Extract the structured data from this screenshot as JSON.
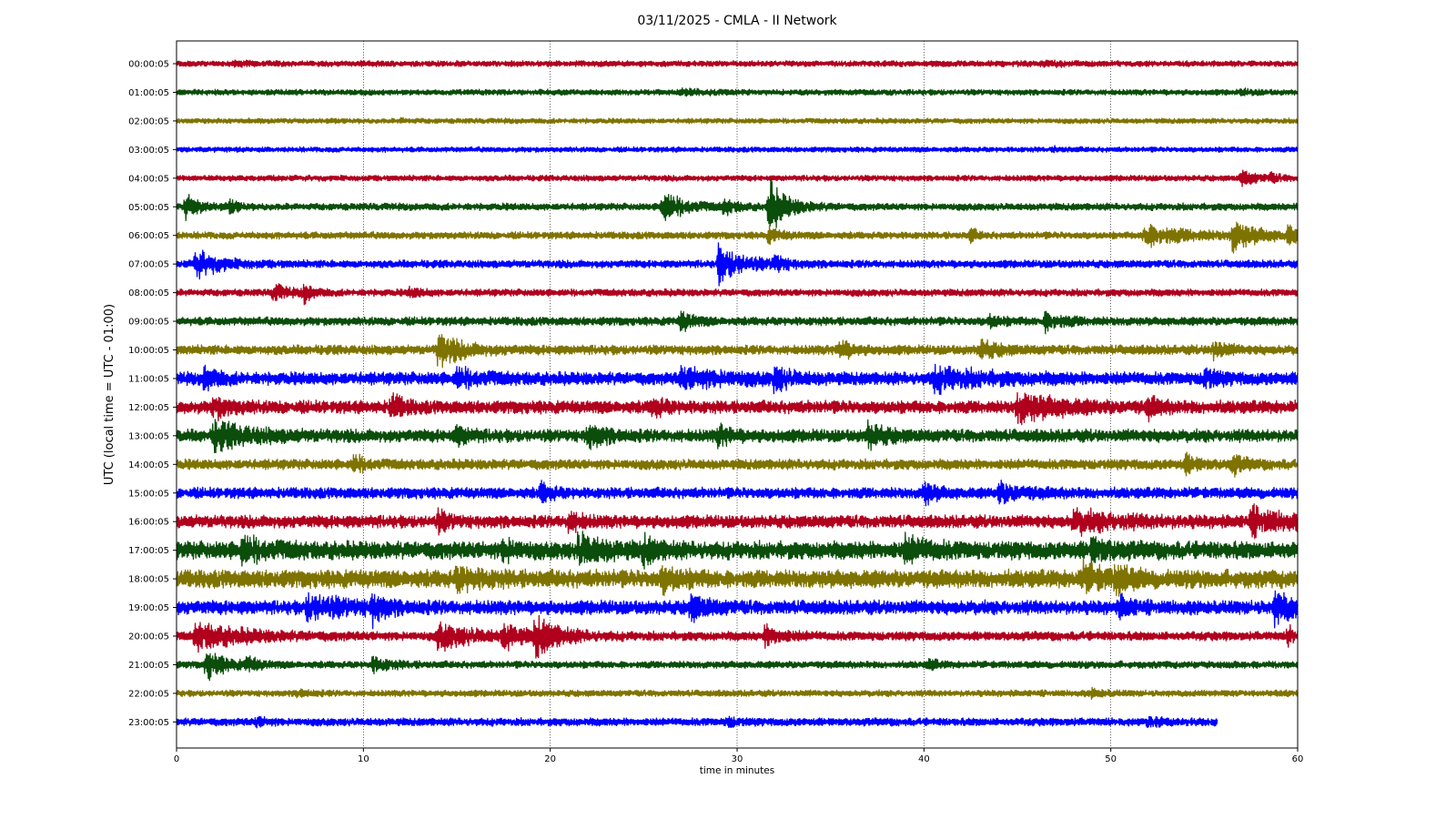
{
  "chart_data": {
    "type": "line",
    "title": "03/11/2025 - CMLA - II Network",
    "xlabel": "time in minutes",
    "ylabel": "UTC (local time = UTC - 01:00)",
    "xlim": [
      0,
      60
    ],
    "xticks": [
      "0",
      "10",
      "20",
      "30",
      "40",
      "50",
      "60"
    ],
    "grid": "vertical dotted at x ticks",
    "colors": [
      "#b0001e",
      "#0b4d0b",
      "#7f7300",
      "#0000ff"
    ],
    "rows": [
      {
        "label": "00:00:05",
        "color": "#b0001e",
        "amplitude": 0.45,
        "end_minute": 60,
        "events": [
          {
            "t": 3.0,
            "amp": 0.3,
            "dur": 1.5
          },
          {
            "t": 46.5,
            "amp": 0.3,
            "dur": 1.5
          }
        ]
      },
      {
        "label": "01:00:05",
        "color": "#0b4d0b",
        "amplitude": 0.45,
        "end_minute": 60,
        "events": [
          {
            "t": 27.0,
            "amp": 0.3,
            "dur": 2
          },
          {
            "t": 57.0,
            "amp": 0.3,
            "dur": 1
          }
        ]
      },
      {
        "label": "02:00:05",
        "color": "#7f7300",
        "amplitude": 0.4,
        "end_minute": 60,
        "events": [
          {
            "t": 12.0,
            "amp": 0.2,
            "dur": 1
          }
        ]
      },
      {
        "label": "03:00:05",
        "color": "#0000ff",
        "amplitude": 0.4,
        "end_minute": 60,
        "events": [
          {
            "t": 47.0,
            "amp": 0.2,
            "dur": 1
          }
        ]
      },
      {
        "label": "04:00:05",
        "color": "#b0001e",
        "amplitude": 0.45,
        "end_minute": 60,
        "events": [
          {
            "t": 57.0,
            "amp": 1.2,
            "dur": 1.2
          },
          {
            "t": 58.5,
            "amp": 0.6,
            "dur": 0.8
          }
        ]
      },
      {
        "label": "05:00:05",
        "color": "#0b4d0b",
        "amplitude": 0.55,
        "end_minute": 60,
        "events": [
          {
            "t": 0.5,
            "amp": 1.8,
            "dur": 1.0
          },
          {
            "t": 2.9,
            "amp": 0.9,
            "dur": 0.6
          },
          {
            "t": 26.0,
            "amp": 2.3,
            "dur": 1.8
          },
          {
            "t": 29.3,
            "amp": 1.0,
            "dur": 1.0
          },
          {
            "t": 31.7,
            "amp": 3.8,
            "dur": 1.5
          }
        ]
      },
      {
        "label": "06:00:05",
        "color": "#7f7300",
        "amplitude": 0.55,
        "end_minute": 60,
        "events": [
          {
            "t": 31.7,
            "amp": 1.0,
            "dur": 1
          },
          {
            "t": 42.5,
            "amp": 1.0,
            "dur": 0.5
          },
          {
            "t": 51.8,
            "amp": 1.6,
            "dur": 3.5
          },
          {
            "t": 56.5,
            "amp": 2.2,
            "dur": 2.0
          },
          {
            "t": 59.5,
            "amp": 1.3,
            "dur": 1.0
          }
        ]
      },
      {
        "label": "07:00:05",
        "color": "#0000ff",
        "amplitude": 0.6,
        "end_minute": 60,
        "events": [
          {
            "t": 1.0,
            "amp": 2.0,
            "dur": 2.0
          },
          {
            "t": 29.0,
            "amp": 2.7,
            "dur": 2.2
          },
          {
            "t": 32.0,
            "amp": 1.3,
            "dur": 0.8
          }
        ]
      },
      {
        "label": "08:00:05",
        "color": "#b0001e",
        "amplitude": 0.55,
        "end_minute": 60,
        "events": [
          {
            "t": 5.2,
            "amp": 1.3,
            "dur": 1.0
          },
          {
            "t": 6.8,
            "amp": 1.3,
            "dur": 0.8
          },
          {
            "t": 12.5,
            "amp": 0.6,
            "dur": 1.0
          }
        ]
      },
      {
        "label": "09:00:05",
        "color": "#0b4d0b",
        "amplitude": 0.65,
        "end_minute": 60,
        "events": [
          {
            "t": 27.0,
            "amp": 1.4,
            "dur": 1.0
          },
          {
            "t": 46.5,
            "amp": 1.3,
            "dur": 1.5
          },
          {
            "t": 43.5,
            "amp": 0.8,
            "dur": 1.0
          }
        ]
      },
      {
        "label": "10:00:05",
        "color": "#7f7300",
        "amplitude": 0.75,
        "end_minute": 60,
        "events": [
          {
            "t": 14.0,
            "amp": 2.4,
            "dur": 2.0
          },
          {
            "t": 35.5,
            "amp": 1.4,
            "dur": 1.0
          },
          {
            "t": 43.0,
            "amp": 1.3,
            "dur": 1.5
          },
          {
            "t": 55.5,
            "amp": 1.3,
            "dur": 1.0
          }
        ]
      },
      {
        "label": "11:00:05",
        "color": "#0000ff",
        "amplitude": 1.0,
        "end_minute": 60,
        "events": [
          {
            "t": 1.5,
            "amp": 1.6,
            "dur": 1.0
          },
          {
            "t": 15.0,
            "amp": 1.2,
            "dur": 2.0
          },
          {
            "t": 27.0,
            "amp": 1.3,
            "dur": 4.0
          },
          {
            "t": 32.0,
            "amp": 1.6,
            "dur": 1.2
          },
          {
            "t": 40.5,
            "amp": 1.5,
            "dur": 4.0
          },
          {
            "t": 55.0,
            "amp": 1.4,
            "dur": 1.0
          }
        ]
      },
      {
        "label": "12:00:05",
        "color": "#b0001e",
        "amplitude": 1.0,
        "end_minute": 60,
        "events": [
          {
            "t": 2.0,
            "amp": 1.3,
            "dur": 1.5
          },
          {
            "t": 11.5,
            "amp": 1.8,
            "dur": 1.0
          },
          {
            "t": 25.5,
            "amp": 1.3,
            "dur": 1.0
          },
          {
            "t": 45.0,
            "amp": 2.0,
            "dur": 3.5
          },
          {
            "t": 52.0,
            "amp": 1.2,
            "dur": 1.0
          }
        ]
      },
      {
        "label": "13:00:05",
        "color": "#0b4d0b",
        "amplitude": 1.0,
        "end_minute": 60,
        "events": [
          {
            "t": 2.0,
            "amp": 1.9,
            "dur": 3.0
          },
          {
            "t": 15.0,
            "amp": 1.3,
            "dur": 1.0
          },
          {
            "t": 22.0,
            "amp": 1.6,
            "dur": 1.5
          },
          {
            "t": 29.0,
            "amp": 1.3,
            "dur": 1.0
          },
          {
            "t": 37.0,
            "amp": 1.6,
            "dur": 1.5
          }
        ]
      },
      {
        "label": "14:00:05",
        "color": "#7f7300",
        "amplitude": 0.8,
        "end_minute": 60,
        "events": [
          {
            "t": 9.5,
            "amp": 1.2,
            "dur": 1.0
          },
          {
            "t": 54.0,
            "amp": 1.2,
            "dur": 1.0
          },
          {
            "t": 56.5,
            "amp": 1.3,
            "dur": 1.0
          }
        ]
      },
      {
        "label": "15:00:05",
        "color": "#0000ff",
        "amplitude": 0.85,
        "end_minute": 60,
        "events": [
          {
            "t": 19.5,
            "amp": 1.3,
            "dur": 1.0
          },
          {
            "t": 40.0,
            "amp": 1.6,
            "dur": 1.0
          },
          {
            "t": 44.0,
            "amp": 1.3,
            "dur": 2.0
          }
        ]
      },
      {
        "label": "16:00:05",
        "color": "#b0001e",
        "amplitude": 1.0,
        "end_minute": 60,
        "events": [
          {
            "t": 14.0,
            "amp": 1.3,
            "dur": 1.0
          },
          {
            "t": 21.0,
            "amp": 1.4,
            "dur": 1.0
          },
          {
            "t": 48.0,
            "amp": 1.4,
            "dur": 4.0
          },
          {
            "t": 57.5,
            "amp": 1.7,
            "dur": 3.0
          }
        ]
      },
      {
        "label": "17:00:05",
        "color": "#0b4d0b",
        "amplitude": 1.4,
        "end_minute": 60,
        "events": [
          {
            "t": 3.5,
            "amp": 1.5,
            "dur": 2.0
          },
          {
            "t": 17.5,
            "amp": 1.3,
            "dur": 1.0
          },
          {
            "t": 21.5,
            "amp": 2.0,
            "dur": 2.0
          },
          {
            "t": 25.0,
            "amp": 1.6,
            "dur": 1.0
          },
          {
            "t": 39.0,
            "amp": 1.4,
            "dur": 2.0
          },
          {
            "t": 49.0,
            "amp": 1.3,
            "dur": 1.5
          }
        ]
      },
      {
        "label": "18:00:05",
        "color": "#7f7300",
        "amplitude": 1.4,
        "end_minute": 60,
        "events": [
          {
            "t": 15.0,
            "amp": 1.3,
            "dur": 2.0
          },
          {
            "t": 26.0,
            "amp": 1.4,
            "dur": 1.5
          },
          {
            "t": 48.5,
            "amp": 1.6,
            "dur": 2.0
          },
          {
            "t": 50.3,
            "amp": 1.8,
            "dur": 1.0
          }
        ]
      },
      {
        "label": "19:00:05",
        "color": "#0000ff",
        "amplitude": 1.1,
        "end_minute": 60,
        "events": [
          {
            "t": 7.0,
            "amp": 1.6,
            "dur": 3.5
          },
          {
            "t": 10.5,
            "amp": 1.8,
            "dur": 1.0
          },
          {
            "t": 27.5,
            "amp": 1.6,
            "dur": 1.5
          },
          {
            "t": 50.5,
            "amp": 1.3,
            "dur": 1.0
          },
          {
            "t": 58.8,
            "amp": 2.4,
            "dur": 1.5
          }
        ]
      },
      {
        "label": "20:00:05",
        "color": "#b0001e",
        "amplitude": 0.7,
        "end_minute": 60,
        "events": [
          {
            "t": 1.0,
            "amp": 1.9,
            "dur": 4.0
          },
          {
            "t": 14.0,
            "amp": 1.9,
            "dur": 3.0
          },
          {
            "t": 17.5,
            "amp": 1.8,
            "dur": 1.5
          },
          {
            "t": 19.2,
            "amp": 2.8,
            "dur": 2.0
          },
          {
            "t": 31.5,
            "amp": 1.4,
            "dur": 1.5
          },
          {
            "t": 59.5,
            "amp": 1.2,
            "dur": 0.8
          }
        ]
      },
      {
        "label": "21:00:05",
        "color": "#0b4d0b",
        "amplitude": 0.55,
        "end_minute": 60,
        "events": [
          {
            "t": 1.6,
            "amp": 2.2,
            "dur": 1.5
          },
          {
            "t": 3.8,
            "amp": 1.1,
            "dur": 0.8
          },
          {
            "t": 10.5,
            "amp": 1.0,
            "dur": 1.5
          },
          {
            "t": 40.3,
            "amp": 0.8,
            "dur": 0.6
          }
        ]
      },
      {
        "label": "22:00:05",
        "color": "#7f7300",
        "amplitude": 0.5,
        "end_minute": 60,
        "events": [
          {
            "t": 6.5,
            "amp": 0.5,
            "dur": 1.0
          },
          {
            "t": 49.0,
            "amp": 0.5,
            "dur": 1.0
          }
        ]
      },
      {
        "label": "23:00:05",
        "color": "#0000ff",
        "amplitude": 0.6,
        "end_minute": 55.7,
        "events": [
          {
            "t": 4.3,
            "amp": 0.6,
            "dur": 0.8
          },
          {
            "t": 29.5,
            "amp": 0.6,
            "dur": 0.8
          },
          {
            "t": 52.0,
            "amp": 0.5,
            "dur": 1.0
          }
        ]
      }
    ]
  }
}
